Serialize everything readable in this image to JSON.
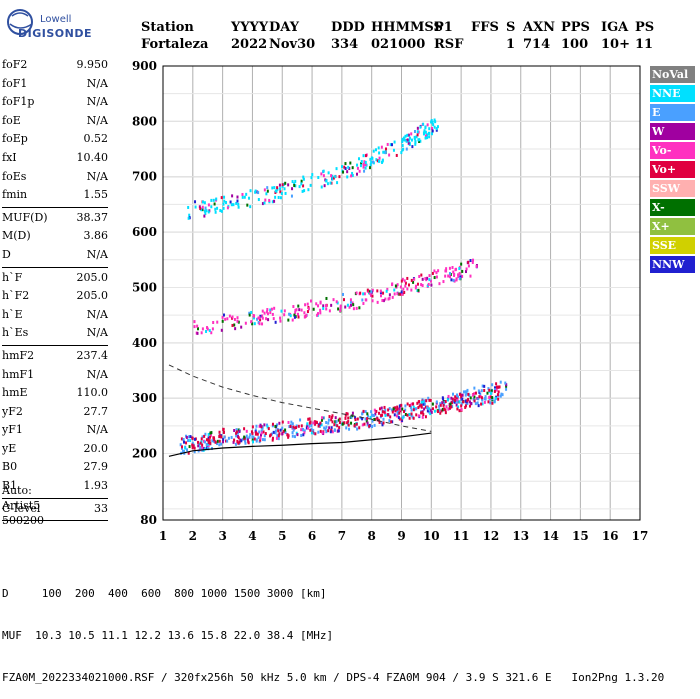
{
  "logo": {
    "line1": "Lowell",
    "line2": "DIGISONDE"
  },
  "header": {
    "labels": [
      "Station",
      "YYYY",
      "DAY",
      "DDD",
      "HHMMSS",
      "P1",
      "FFS",
      "S",
      "AXN",
      "PPS",
      "IGA",
      "PS"
    ],
    "values": [
      "Fortaleza",
      "2022",
      "Nov30",
      "334",
      "021000",
      "RSF",
      "",
      "1",
      "714",
      "100",
      "10+",
      "11"
    ]
  },
  "params": [
    {
      "name": "foF2",
      "value": "9.950"
    },
    {
      "name": "foF1",
      "value": "N/A"
    },
    {
      "name": "foF1p",
      "value": "N/A"
    },
    {
      "name": "foE",
      "value": "N/A"
    },
    {
      "name": "foEp",
      "value": "0.52"
    },
    {
      "name": "fxI",
      "value": "10.40"
    },
    {
      "name": "foEs",
      "value": "N/A"
    },
    {
      "name": "fmin",
      "value": "1.55"
    },
    {
      "sep": true
    },
    {
      "name": "MUF(D)",
      "value": "38.37"
    },
    {
      "name": "M(D)",
      "value": "3.86"
    },
    {
      "name": "D",
      "value": "N/A"
    },
    {
      "sep": true
    },
    {
      "name": "h`F",
      "value": "205.0"
    },
    {
      "name": "h`F2",
      "value": "205.0"
    },
    {
      "name": "h`E",
      "value": "N/A"
    },
    {
      "name": "h`Es",
      "value": "N/A"
    },
    {
      "sep": true
    },
    {
      "name": "hmF2",
      "value": "237.4"
    },
    {
      "name": "hmF1",
      "value": "N/A"
    },
    {
      "name": "hmE",
      "value": "110.0"
    },
    {
      "name": "yF2",
      "value": "27.7"
    },
    {
      "name": "yF1",
      "value": "N/A"
    },
    {
      "name": "yE",
      "value": "20.0"
    },
    {
      "name": "B0",
      "value": "27.9"
    },
    {
      "name": "B1",
      "value": "1.93"
    },
    {
      "sep": true
    },
    {
      "name": "C-level",
      "value": "33"
    },
    {
      "sep": true
    }
  ],
  "auto": {
    "line1": "Auto:",
    "line2": "Artist5",
    "line3": "500200"
  },
  "legend": [
    {
      "label": "NoVal",
      "color": "#808080"
    },
    {
      "label": "NNE",
      "color": "#00e0ff"
    },
    {
      "label": "E",
      "color": "#4aa0ff"
    },
    {
      "label": "W",
      "color": "#a000a0"
    },
    {
      "label": "Vo-",
      "color": "#ff30c0"
    },
    {
      "label": "Vo+",
      "color": "#e00040"
    },
    {
      "label": "SSW",
      "color": "#ffb0b0"
    },
    {
      "label": "X-",
      "color": "#007000"
    },
    {
      "label": "X+",
      "color": "#90c040"
    },
    {
      "label": "SSE",
      "color": "#d0d000"
    },
    {
      "label": "NNW",
      "color": "#2020d0"
    }
  ],
  "footer": {
    "line1": "D     100  200  400  600  800 1000 1500 3000 [km]",
    "line2": "MUF  10.3 10.5 11.1 12.2 13.6 15.8 22.0 38.4 [MHz]",
    "line3": "FZA0M_2022334021000.RSF / 320fx256h 50 kHz 5.0 km / DPS-4 FZA0M 904 / 3.9 S 321.6 E   Ion2Png 1.3.20"
  },
  "chart_data": {
    "type": "scatter",
    "xlim": [
      1,
      17
    ],
    "ylim": [
      80,
      900
    ],
    "x_ticks": [
      1,
      2,
      3,
      4,
      5,
      6,
      7,
      8,
      9,
      10,
      11,
      12,
      13,
      14,
      15,
      16,
      17
    ],
    "y_ticks": [
      80,
      200,
      300,
      400,
      500,
      600,
      700,
      800,
      900
    ],
    "grid": true,
    "series": [
      {
        "name": "E",
        "x": [
          1.5,
          3.5,
          6.0,
          8.5,
          10.8,
          12.5
        ],
        "y": [
          215,
          235,
          250,
          270,
          300,
          320
        ]
      },
      {
        "name": "Vo+",
        "x": [
          1.6,
          4.0,
          6.5,
          8.8,
          10.5,
          12.3
        ],
        "y": [
          225,
          238,
          255,
          275,
          290,
          310
        ]
      },
      {
        "name": "Vo-",
        "x": [
          2.0,
          5.0,
          7.5,
          9.5,
          11.5
        ],
        "y": [
          430,
          455,
          480,
          510,
          540
        ]
      },
      {
        "name": "NNE",
        "x": [
          1.8,
          4.5,
          7.0,
          9.0,
          10.2
        ],
        "y": [
          640,
          670,
          710,
          760,
          800
        ]
      }
    ],
    "profile_curve": {
      "x": [
        1.2,
        2,
        3,
        4,
        5,
        6,
        7,
        8,
        9,
        10
      ],
      "y": [
        195,
        205,
        210,
        213,
        215,
        218,
        220,
        225,
        230,
        237
      ]
    },
    "dashed_curve": {
      "x": [
        1.2,
        2,
        3,
        4,
        5,
        6,
        7,
        8,
        9,
        10
      ],
      "y": [
        360,
        340,
        320,
        305,
        292,
        282,
        272,
        262,
        250,
        240
      ]
    }
  }
}
